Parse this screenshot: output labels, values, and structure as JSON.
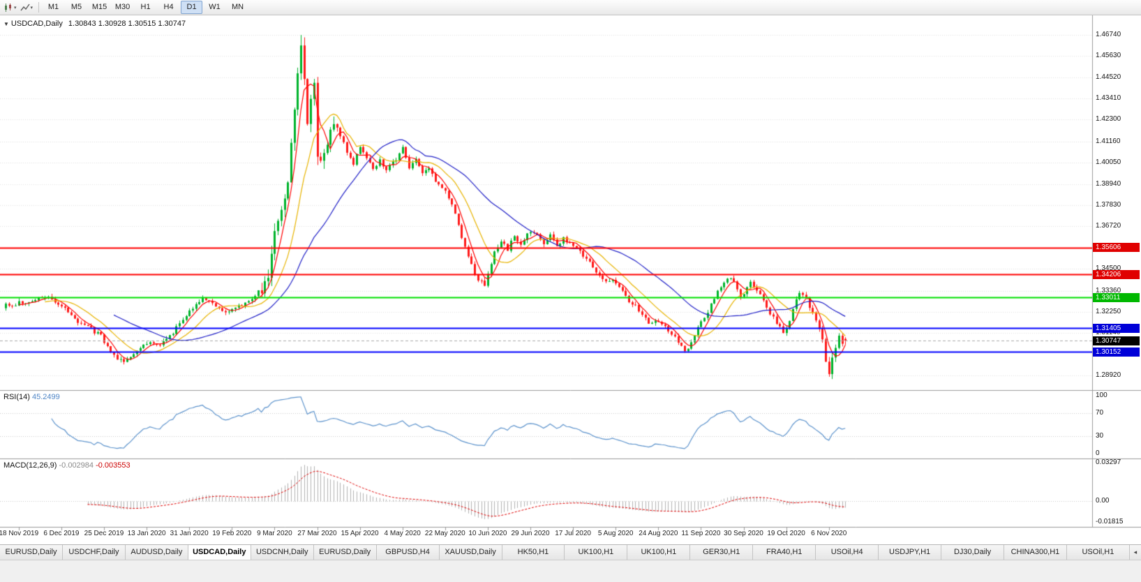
{
  "toolbar": {
    "timeframes": [
      "M1",
      "M5",
      "M15",
      "M30",
      "H1",
      "H4",
      "D1",
      "W1",
      "MN"
    ],
    "active_timeframe": "D1"
  },
  "header": {
    "symbol": "USDCAD,Daily",
    "open": "1.30843",
    "high": "1.30928",
    "low": "1.30515",
    "close": "1.30747"
  },
  "rsi_panel": {
    "label": "RSI(14)",
    "value": "45.2499",
    "scale_labels": [
      "100",
      "70",
      "30",
      "0"
    ],
    "levels": [
      70,
      30
    ]
  },
  "macd_panel": {
    "label": "MACD(12,26,9)",
    "main_value": "-0.002984",
    "signal_value": "-0.003553",
    "scale_labels": [
      "0.03297",
      "0.00",
      "-0.01815"
    ]
  },
  "price_scale": {
    "labels": [
      "1.46740",
      "1.45630",
      "1.44520",
      "1.43410",
      "1.42300",
      "1.41160",
      "1.40050",
      "1.38940",
      "1.37830",
      "1.36720",
      "1.34500",
      "1.33360",
      "1.32250",
      "1.31140",
      "1.28920"
    ],
    "badges": [
      {
        "text": "1.35606",
        "color": "#e00000",
        "kind": "level"
      },
      {
        "text": "1.34206",
        "color": "#e00000",
        "kind": "level"
      },
      {
        "text": "1.33011",
        "color": "#00b800",
        "kind": "level"
      },
      {
        "text": "1.31405",
        "color": "#0000d8",
        "kind": "level"
      },
      {
        "text": "1.30747",
        "color": "#000000",
        "kind": "current"
      },
      {
        "text": "1.30152",
        "color": "#0000d8",
        "kind": "level"
      }
    ]
  },
  "time_scale": [
    {
      "text": "18 Nov 2019",
      "bar": 4
    },
    {
      "text": "6 Dec 2019",
      "bar": 17
    },
    {
      "text": "25 Dec 2019",
      "bar": 30
    },
    {
      "text": "13 Jan 2020",
      "bar": 43
    },
    {
      "text": "31 Jan 2020",
      "bar": 56
    },
    {
      "text": "19 Feb 2020",
      "bar": 69
    },
    {
      "text": "9 Mar 2020",
      "bar": 82
    },
    {
      "text": "27 Mar 2020",
      "bar": 95
    },
    {
      "text": "15 Apr 2020",
      "bar": 108
    },
    {
      "text": "4 May 2020",
      "bar": 121
    },
    {
      "text": "22 May 2020",
      "bar": 134
    },
    {
      "text": "10 Jun 2020",
      "bar": 147
    },
    {
      "text": "29 Jun 2020",
      "bar": 160
    },
    {
      "text": "17 Jul 2020",
      "bar": 173
    },
    {
      "text": "5 Aug 2020",
      "bar": 186
    },
    {
      "text": "24 Aug 2020",
      "bar": 199
    },
    {
      "text": "11 Sep 2020",
      "bar": 212
    },
    {
      "text": "30 Sep 2020",
      "bar": 225
    },
    {
      "text": "19 Oct 2020",
      "bar": 238
    },
    {
      "text": "6 Nov 2020",
      "bar": 251
    }
  ],
  "tabs": [
    "EURUSD,Daily",
    "USDCHF,Daily",
    "AUDUSD,Daily",
    "USDCAD,Daily",
    "USDCNH,Daily",
    "EURUSD,Daily",
    "GBPUSD,H4",
    "XAUUSD,Daily",
    "HK50,H1",
    "UK100,H1",
    "UK100,H1",
    "GER30,H1",
    "FRA40,H1",
    "USOil,H4",
    "USDJPY,H1",
    "DJ30,Daily",
    "CHINA300,H1",
    "USOil,H1"
  ],
  "active_tab_index": 3,
  "colors": {
    "candle_up": "#00b32c",
    "candle_down": "#ff1a1a",
    "rsi_line": "#5b92cc",
    "macd_hist": "#b2b2b2",
    "macd_signal": "#e00000",
    "grid": "#e2e2e2",
    "frame": "#9a9a9a"
  },
  "chart_data": {
    "type": "candlestick",
    "symbol": "USDCAD",
    "timeframe": "Daily",
    "bars": 257,
    "y_range": [
      1.282,
      1.4775
    ],
    "last_ohlc": {
      "open": 1.30843,
      "high": 1.30928,
      "low": 1.30515,
      "close": 1.30747
    },
    "extremes": {
      "high_bar": 90,
      "high": 1.4672,
      "low_bar": 251,
      "low": 1.2886
    },
    "high_volatility_bars": [
      78,
      102
    ],
    "horizontal_lines": [
      {
        "price": 1.35606,
        "color": "#ff0000",
        "style": "solid"
      },
      {
        "price": 1.34206,
        "color": "#ff0000",
        "style": "solid"
      },
      {
        "price": 1.33011,
        "color": "#00e000",
        "style": "solid"
      },
      {
        "price": 1.31405,
        "color": "#0000ff",
        "style": "solid"
      },
      {
        "price": 1.30152,
        "color": "#0000ff",
        "style": "solid"
      },
      {
        "price": 1.30747,
        "color": "#aaaaaa",
        "style": "dash"
      }
    ],
    "moving_averages": [
      {
        "period": 5,
        "color": "#ff0000"
      },
      {
        "period": 13,
        "color": "#e8b400"
      },
      {
        "period": 34,
        "color": "#2222c8"
      }
    ],
    "rsi": {
      "period": 14,
      "current": 45.2499
    },
    "macd": {
      "fast": 12,
      "slow": 26,
      "signal": 9,
      "current_main": -0.002984,
      "current_signal": -0.003553
    },
    "close_anchors": [
      [
        0,
        1.3258
      ],
      [
        4,
        1.3272
      ],
      [
        9,
        1.3292
      ],
      [
        13,
        1.3302
      ],
      [
        17,
        1.3258
      ],
      [
        21,
        1.3185
      ],
      [
        25,
        1.3148
      ],
      [
        29,
        1.3098
      ],
      [
        33,
        1.2992
      ],
      [
        36,
        1.2962
      ],
      [
        39,
        1.3008
      ],
      [
        43,
        1.3058
      ],
      [
        47,
        1.3052
      ],
      [
        51,
        1.3118
      ],
      [
        54,
        1.3182
      ],
      [
        56,
        1.3232
      ],
      [
        60,
        1.3288
      ],
      [
        64,
        1.3262
      ],
      [
        67,
        1.3228
      ],
      [
        70,
        1.3238
      ],
      [
        73,
        1.3272
      ],
      [
        76,
        1.3312
      ],
      [
        78,
        1.3352
      ],
      [
        80,
        1.3422
      ],
      [
        82,
        1.3642
      ],
      [
        84,
        1.3762
      ],
      [
        86,
        1.3905
      ],
      [
        88,
        1.4285
      ],
      [
        90,
        1.4602
      ],
      [
        91,
        1.4452
      ],
      [
        92,
        1.4205
      ],
      [
        93,
        1.4352
      ],
      [
        94,
        1.4428
      ],
      [
        95,
        1.4052
      ],
      [
        96,
        1.3992
      ],
      [
        98,
        1.4112
      ],
      [
        100,
        1.4192
      ],
      [
        102,
        1.4142
      ],
      [
        104,
        1.4062
      ],
      [
        106,
        1.3992
      ],
      [
        108,
        1.4092
      ],
      [
        110,
        1.4032
      ],
      [
        112,
        1.3972
      ],
      [
        114,
        1.4022
      ],
      [
        116,
        1.3962
      ],
      [
        118,
        1.4002
      ],
      [
        121,
        1.4078
      ],
      [
        123,
        1.3982
      ],
      [
        125,
        1.4032
      ],
      [
        127,
        1.3942
      ],
      [
        129,
        1.3982
      ],
      [
        131,
        1.3902
      ],
      [
        134,
        1.3852
      ],
      [
        136,
        1.3782
      ],
      [
        138,
        1.3682
      ],
      [
        140,
        1.3562
      ],
      [
        142,
        1.3472
      ],
      [
        144,
        1.3392
      ],
      [
        146,
        1.3372
      ],
      [
        147,
        1.3422
      ],
      [
        149,
        1.3542
      ],
      [
        151,
        1.3592
      ],
      [
        153,
        1.3552
      ],
      [
        155,
        1.3622
      ],
      [
        157,
        1.3582
      ],
      [
        160,
        1.3652
      ],
      [
        162,
        1.3622
      ],
      [
        164,
        1.3582
      ],
      [
        166,
        1.3622
      ],
      [
        168,
        1.3572
      ],
      [
        170,
        1.3612
      ],
      [
        173,
        1.3562
      ],
      [
        175,
        1.3542
      ],
      [
        177,
        1.3502
      ],
      [
        179,
        1.3462
      ],
      [
        181,
        1.3412
      ],
      [
        183,
        1.3392
      ],
      [
        186,
        1.3382
      ],
      [
        188,
        1.3332
      ],
      [
        190,
        1.3282
      ],
      [
        192,
        1.3252
      ],
      [
        194,
        1.3212
      ],
      [
        196,
        1.3172
      ],
      [
        199,
        1.3182
      ],
      [
        201,
        1.3152
      ],
      [
        203,
        1.3112
      ],
      [
        205,
        1.3062
      ],
      [
        207,
        1.3022
      ],
      [
        209,
        1.3062
      ],
      [
        211,
        1.3142
      ],
      [
        212,
        1.3182
      ],
      [
        214,
        1.3222
      ],
      [
        216,
        1.3302
      ],
      [
        218,
        1.3362
      ],
      [
        220,
        1.3402
      ],
      [
        222,
        1.3382
      ],
      [
        224,
        1.3312
      ],
      [
        225,
        1.3322
      ],
      [
        227,
        1.3382
      ],
      [
        229,
        1.3342
      ],
      [
        231,
        1.3282
      ],
      [
        233,
        1.3222
      ],
      [
        235,
        1.3162
      ],
      [
        237,
        1.3122
      ],
      [
        238,
        1.3132
      ],
      [
        240,
        1.3242
      ],
      [
        242,
        1.3322
      ],
      [
        244,
        1.3302
      ],
      [
        246,
        1.3212
      ],
      [
        248,
        1.3142
      ],
      [
        250,
        1.2982
      ],
      [
        251,
        1.2908
      ],
      [
        252,
        1.2988
      ],
      [
        253,
        1.3048
      ],
      [
        254,
        1.3092
      ],
      [
        255,
        1.3058
      ],
      [
        256,
        1.30747
      ]
    ]
  }
}
